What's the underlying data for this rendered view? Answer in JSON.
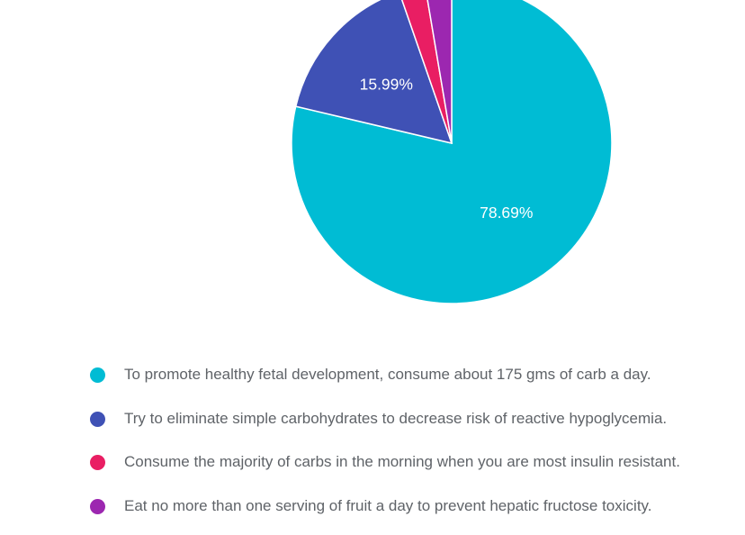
{
  "chart_data": {
    "type": "pie",
    "slices": [
      {
        "label": "To promote healthy fetal development, consume about 175 gms of carb a day.",
        "value": 78.69,
        "display": "78.69%",
        "color": "#00bcd4",
        "show_label": true
      },
      {
        "label": "Try to eliminate simple carbohydrates to decrease risk of reactive hypoglycemia.",
        "value": 15.99,
        "display": "15.99%",
        "color": "#3f51b5",
        "show_label": true
      },
      {
        "label": "Consume the majority of carbs in the morning when you are most insulin resistant.",
        "value": 2.66,
        "display": "",
        "color": "#e91e63",
        "show_label": false
      },
      {
        "label": "Eat no more than one serving of fruit a day to prevent hepatic fructose toxicity.",
        "value": 2.66,
        "display": "",
        "color": "#9c27b0",
        "show_label": false
      }
    ],
    "legend_position": "bottom"
  }
}
